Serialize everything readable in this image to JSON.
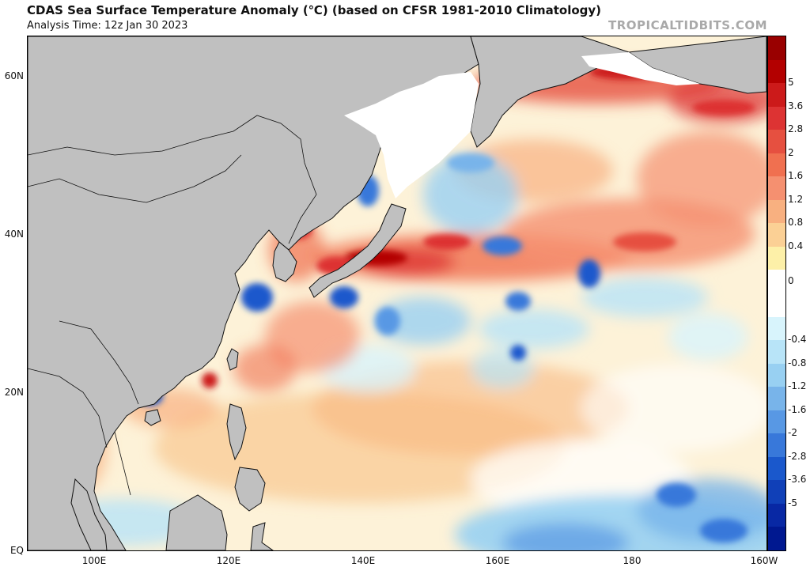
{
  "header": {
    "title": "CDAS Sea Surface Temperature Anomaly (℃) (based on CFSR 1981-2010 Climatology)",
    "subtitle": "Analysis Time: 12z Jan 30 2023",
    "brand": "TROPICALTIDBITS.COM"
  },
  "map": {
    "lat_labels": [
      "60N",
      "40N",
      "20N",
      "EQ"
    ],
    "lon_labels": [
      "100E",
      "120E",
      "140E",
      "160E",
      "180",
      "160W"
    ],
    "lon_range": [
      90,
      200
    ],
    "lat_range": [
      0,
      65
    ],
    "land_color": "#c0c0c0",
    "ice_color": "#ffffff"
  },
  "colorbar": {
    "labels": [
      "5",
      "3.6",
      "2.8",
      "2",
      "1.6",
      "1.2",
      "0.8",
      "0.4",
      "0",
      "-0.4",
      "-0.8",
      "-1.2",
      "-1.6",
      "-2",
      "-2.8",
      "-3.6",
      "-5"
    ],
    "colors": [
      "#990000",
      "#b30000",
      "#cc1a1a",
      "#dd3333",
      "#e65040",
      "#f07050",
      "#f59070",
      "#f8b080",
      "#fbd095",
      "#fdf0a8",
      "#ffffff",
      "#ffffff",
      "#d8f4fc",
      "#b8e4f8",
      "#98d0f2",
      "#78b4ea",
      "#5898e4",
      "#3878da",
      "#1a58cc",
      "#1040b8",
      "#0828a4",
      "#001890"
    ]
  }
}
